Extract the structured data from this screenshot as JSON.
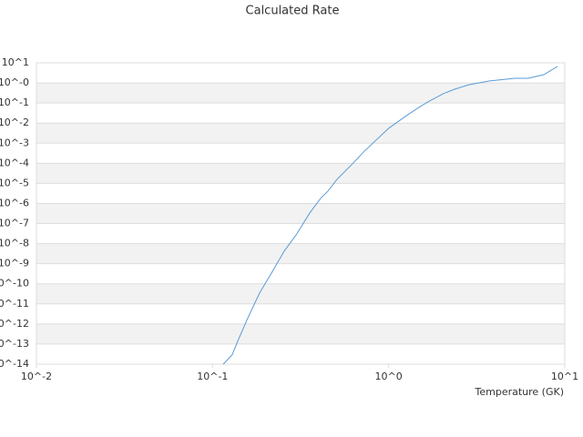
{
  "chart_data": {
    "type": "line",
    "title": "Calculated Rate",
    "x_label": "Temperature (GK)",
    "log_x": true,
    "log_y": true,
    "grid": true,
    "color": "#5b9bd5",
    "x": [
      0.115,
      0.129,
      0.141,
      0.158,
      0.185,
      0.216,
      0.255,
      0.298,
      0.356,
      0.411,
      0.452,
      0.509,
      0.609,
      0.728,
      1.0,
      1.24,
      1.48,
      1.67,
      2.04,
      2.38,
      2.85,
      3.71,
      5.2,
      6.2,
      7.6,
      9.1
    ],
    "values": [
      1e-14,
      2.85e-14,
      1.86e-13,
      1.86e-12,
      3.5e-11,
      3.4e-10,
      4.2e-09,
      2.7e-08,
      3.3e-07,
      1.8e-06,
      4.1e-06,
      1.6e-05,
      7.6e-05,
      0.0004,
      0.0055,
      0.021,
      0.06,
      0.113,
      0.29,
      0.49,
      0.81,
      1.24,
      1.7,
      1.7,
      2.57,
      6.6
    ],
    "xlim": [
      0.01,
      10
    ],
    "xticks": [
      {
        "value": 0.01,
        "label": "10^-2"
      },
      {
        "value": 0.1,
        "label": "10^-1"
      },
      {
        "value": 1,
        "label": "10^0"
      },
      {
        "value": 10,
        "label": "10^1"
      }
    ],
    "ylim": [
      1e-14,
      10
    ],
    "yticks": [
      {
        "value": 10,
        "label": "10^1"
      },
      {
        "value": 1,
        "label": "10^-0"
      },
      {
        "value": 0.1,
        "label": "10^-1"
      },
      {
        "value": 0.01,
        "label": "10^-2"
      },
      {
        "value": 0.001,
        "label": "10^-3"
      },
      {
        "value": 0.0001,
        "label": "10^-4"
      },
      {
        "value": 1e-05,
        "label": "10^-5"
      },
      {
        "value": 1e-06,
        "label": "10^-6"
      },
      {
        "value": 1e-07,
        "label": "10^-7"
      },
      {
        "value": 1e-08,
        "label": "10^-8"
      },
      {
        "value": 1e-09,
        "label": "10^-9"
      },
      {
        "value": 1e-10,
        "label": "10^-10"
      },
      {
        "value": 1e-11,
        "label": "10^-11"
      },
      {
        "value": 1e-12,
        "label": "10^-12"
      },
      {
        "value": 1e-13,
        "label": "10^-13"
      },
      {
        "value": 1e-14,
        "label": "10^-14"
      }
    ]
  }
}
